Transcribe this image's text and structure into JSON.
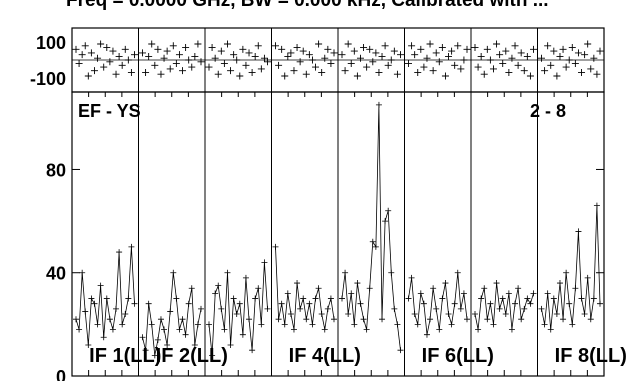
{
  "header": {
    "title": "Freq = 0.0000 GHz, BW = 0.000 kHz, Calibrated with ..."
  },
  "panel_labels": {
    "left": "EF - YS",
    "right": "2 - 8"
  },
  "chart_data": {
    "type": "line",
    "phase_panel": {
      "yticks": [
        100,
        -100
      ],
      "ylim": [
        -180,
        180
      ]
    },
    "amplitude_panel": {
      "yticks": [
        0,
        40,
        80
      ],
      "ylim": [
        0,
        110
      ]
    },
    "subplots": [
      {
        "label": "IF 1(LL)",
        "phase": [
          60,
          -20,
          30,
          80,
          -90,
          40,
          -60,
          10,
          90,
          -40,
          70,
          -10,
          50,
          -80,
          20,
          -30,
          60,
          0,
          -70,
          30
        ],
        "amplitude": [
          22,
          18,
          40,
          25,
          12,
          30,
          28,
          20,
          35,
          15,
          30,
          22,
          18,
          26,
          48,
          20,
          24,
          30,
          50,
          28
        ]
      },
      {
        "label": "IF 2(LL)",
        "phase": [
          40,
          -70,
          20,
          90,
          -30,
          60,
          -80,
          10,
          50,
          -50,
          80,
          -20,
          30,
          -60,
          70,
          0,
          -40,
          20,
          90,
          -10
        ],
        "amplitude": [
          15,
          10,
          28,
          20,
          8,
          14,
          22,
          18,
          12,
          25,
          40,
          30,
          18,
          22,
          16,
          28,
          34,
          12,
          20,
          26
        ]
      },
      {
        "label": "",
        "phase": [
          -40,
          70,
          10,
          -80,
          50,
          -20,
          90,
          -60,
          30,
          0,
          -90,
          60,
          -30,
          40,
          -70,
          20,
          80,
          -50,
          10,
          -10
        ],
        "amplitude": [
          20,
          8,
          32,
          35,
          26,
          18,
          40,
          12,
          30,
          24,
          28,
          16,
          38,
          22,
          10,
          30,
          34,
          20,
          44,
          26
        ]
      },
      {
        "label": "IF 4(LL)",
        "phase": [
          80,
          -30,
          60,
          -90,
          20,
          40,
          -60,
          70,
          -10,
          50,
          -80,
          30,
          0,
          -40,
          90,
          -70,
          10,
          60,
          -20,
          40
        ],
        "amplitude": [
          50,
          22,
          28,
          20,
          32,
          24,
          18,
          36,
          26,
          30,
          22,
          28,
          20,
          30,
          34,
          24,
          18,
          26,
          30,
          22
        ]
      },
      {
        "label": "",
        "phase": [
          30,
          -60,
          90,
          -20,
          50,
          -90,
          10,
          70,
          -40,
          60,
          -10,
          40,
          -70,
          20,
          80,
          -30,
          0,
          50,
          -80,
          30
        ],
        "amplitude": [
          30,
          40,
          24,
          32,
          20,
          36,
          28,
          22,
          18,
          34,
          52,
          50,
          105,
          22,
          60,
          64,
          40,
          26,
          20,
          10
        ]
      },
      {
        "label": "IF 6(LL)",
        "phase": [
          -20,
          80,
          30,
          -70,
          60,
          -40,
          10,
          90,
          -60,
          40,
          -10,
          70,
          -90,
          20,
          50,
          -30,
          80,
          -50,
          0,
          60
        ],
        "amplitude": [
          30,
          38,
          24,
          20,
          32,
          28,
          16,
          22,
          34,
          26,
          18,
          30,
          36,
          24,
          20,
          28,
          40,
          26,
          32,
          22
        ]
      },
      {
        "label": "",
        "phase": [
          70,
          -40,
          20,
          -80,
          60,
          0,
          -50,
          90,
          30,
          -20,
          50,
          -70,
          10,
          80,
          -30,
          40,
          -60,
          20,
          -90,
          60
        ],
        "amplitude": [
          24,
          18,
          30,
          34,
          22,
          28,
          20,
          36,
          26,
          30,
          24,
          32,
          18,
          28,
          34,
          22,
          26,
          30,
          28,
          32
        ]
      },
      {
        "label": "IF 8(LL)",
        "phase": [
          10,
          -60,
          80,
          -30,
          50,
          -90,
          20,
          60,
          -40,
          0,
          70,
          -20,
          40,
          -70,
          30,
          90,
          -50,
          10,
          -80,
          50
        ],
        "amplitude": [
          26,
          20,
          32,
          18,
          30,
          24,
          36,
          22,
          40,
          28,
          20,
          34,
          56,
          30,
          24,
          38,
          22,
          30,
          66,
          28
        ]
      }
    ]
  }
}
